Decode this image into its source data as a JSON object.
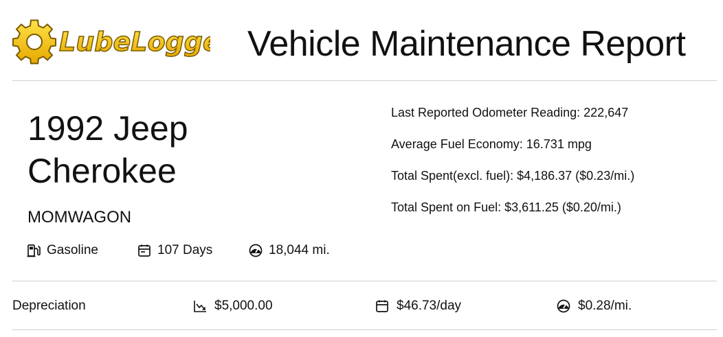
{
  "header": {
    "logo_text": "LubeLogger",
    "title": "Vehicle Maintenance Report"
  },
  "vehicle": {
    "name": "1992 Jeep Cherokee",
    "license_plate": "MOMWAGON",
    "fuel_type": "Gasoline",
    "days": "107 Days",
    "distance": "18,044 mi."
  },
  "stats": {
    "odometer": "Last Reported Odometer Reading: 222,647",
    "fuel_economy": "Average Fuel Economy: 16.731 mpg",
    "total_spent": "Total Spent(excl. fuel): $4,186.37 ($0.23/mi.)",
    "fuel_spent": "Total Spent on Fuel: $3,611.25 ($0.20/mi.)"
  },
  "depreciation": {
    "label": "Depreciation",
    "total": "$5,000.00",
    "per_day": "$46.73/day",
    "per_mile": "$0.28/mi."
  },
  "icons": {
    "logo": "gear-icon",
    "fuel": "fuel-pump-icon",
    "days": "calendar-icon",
    "distance": "speedometer-icon",
    "depreciation_total": "trend-down-icon",
    "depreciation_day": "calendar-icon",
    "depreciation_mile": "speedometer-icon"
  },
  "colors": {
    "logo_fill": "#f5c400",
    "logo_outline": "#7a5a00",
    "divider": "#cfcfcf"
  }
}
